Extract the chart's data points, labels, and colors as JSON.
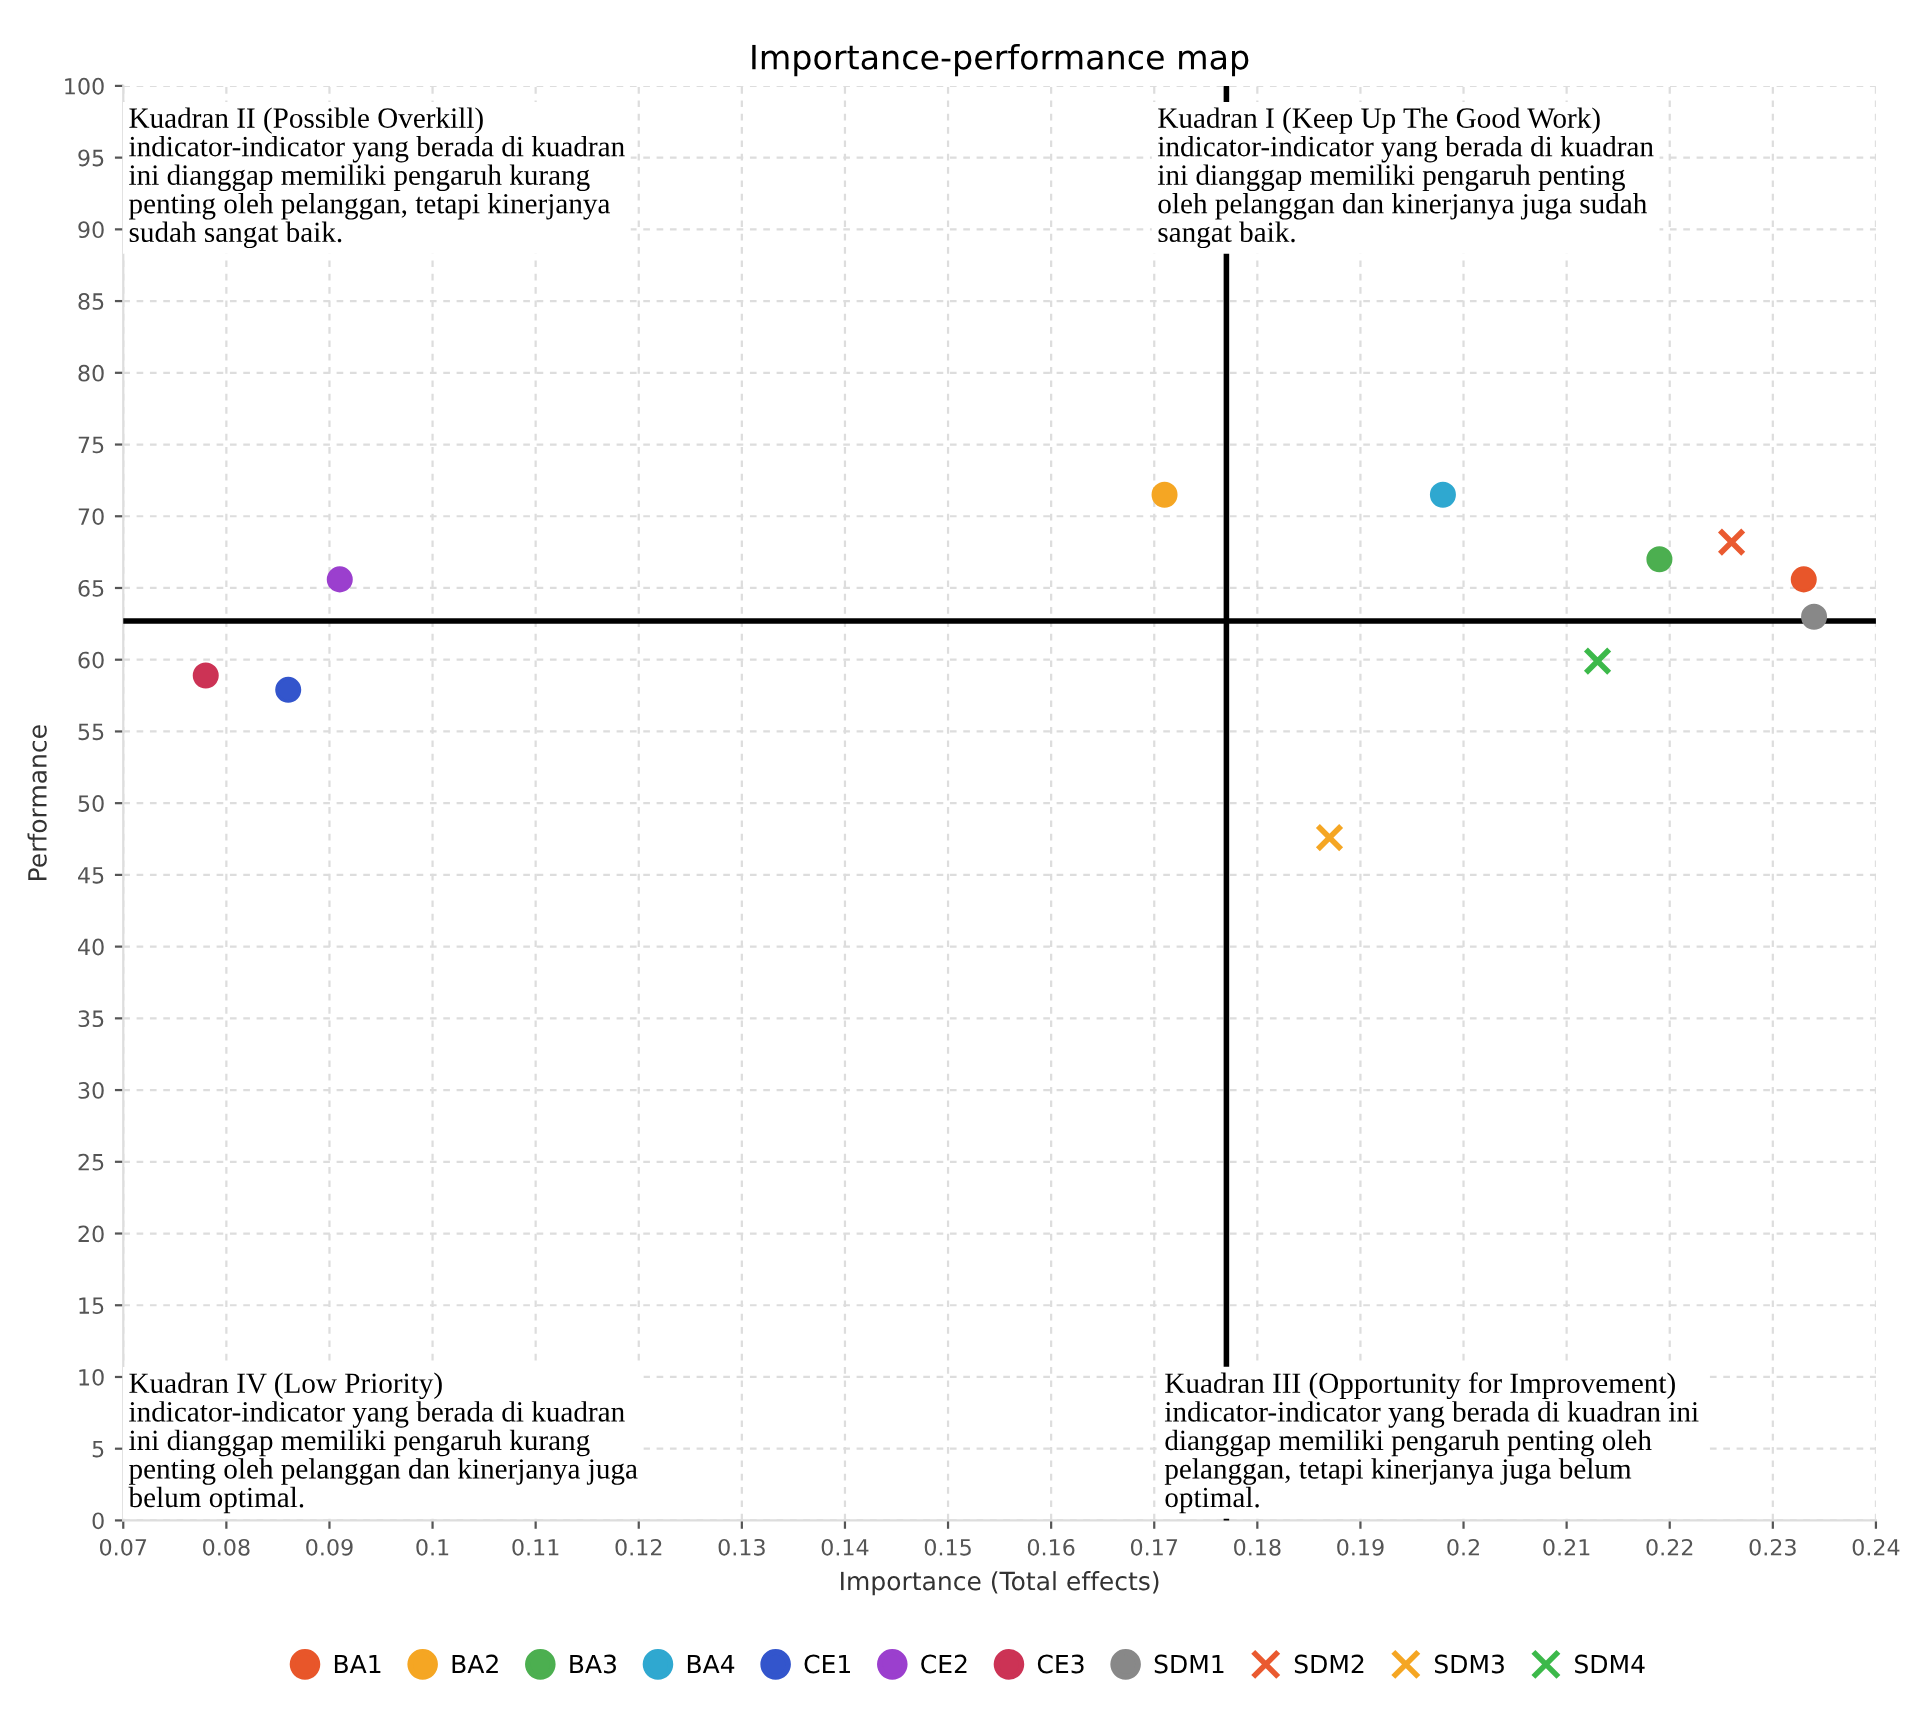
{
  "chart_data": {
    "type": "scatter",
    "title": "Importance-performance map",
    "xlabel": "Importance (Total effects)",
    "ylabel": "Performance",
    "xlim": [
      0.07,
      0.24
    ],
    "xticks": [
      0.07,
      0.08,
      0.09,
      0.1,
      0.11,
      0.12,
      0.13,
      0.14,
      0.15,
      0.16,
      0.17,
      0.18,
      0.19,
      0.2,
      0.21,
      0.22,
      0.23,
      0.24
    ],
    "ylim": [
      0,
      100
    ],
    "yticks": [
      0,
      5,
      10,
      15,
      20,
      25,
      30,
      35,
      40,
      45,
      50,
      55,
      60,
      65,
      70,
      75,
      80,
      85,
      90,
      95,
      100
    ],
    "grid": true,
    "legend": "bottom",
    "series": [
      {
        "name": "BA1",
        "color": "#e8562a",
        "marker": "circle",
        "x": [
          0.233
        ],
        "values": [
          65.6
        ]
      },
      {
        "name": "BA2",
        "color": "#f5a623",
        "marker": "circle",
        "x": [
          0.171
        ],
        "values": [
          71.5
        ]
      },
      {
        "name": "BA3",
        "color": "#4caf50",
        "marker": "circle",
        "x": [
          0.219
        ],
        "values": [
          67.0
        ]
      },
      {
        "name": "BA4",
        "color": "#2fa8d0",
        "marker": "circle",
        "x": [
          0.198
        ],
        "values": [
          71.5
        ]
      },
      {
        "name": "CE1",
        "color": "#3355cc",
        "marker": "circle",
        "x": [
          0.086
        ],
        "values": [
          57.9
        ]
      },
      {
        "name": "CE2",
        "color": "#9b3fce",
        "marker": "circle",
        "x": [
          0.091
        ],
        "values": [
          65.6
        ]
      },
      {
        "name": "CE3",
        "color": "#cc3355",
        "marker": "circle",
        "x": [
          0.078
        ],
        "values": [
          58.9
        ]
      },
      {
        "name": "SDM1",
        "color": "#888888",
        "marker": "circle",
        "x": [
          0.234
        ],
        "values": [
          63.0
        ]
      },
      {
        "name": "SDM2",
        "color": "#ea5a30",
        "marker": "cross",
        "x": [
          0.226
        ],
        "values": [
          68.2
        ]
      },
      {
        "name": "SDM3",
        "color": "#f5a623",
        "marker": "cross",
        "x": [
          0.187
        ],
        "values": [
          47.6
        ]
      },
      {
        "name": "SDM4",
        "color": "#3cb94a",
        "marker": "cross",
        "x": [
          0.213
        ],
        "values": [
          59.9
        ]
      }
    ],
    "ref_lines": [
      {
        "axis": "x",
        "value": 0.177,
        "color": "#000000"
      },
      {
        "axis": "y",
        "value": 62.7,
        "color": "#000000"
      }
    ],
    "annotations": [
      "Kuadran II (Possible Overkill)\nindicator-indicator yang berada di kuadran\nini dianggap memiliki pengaruh kurang\npenting oleh pelanggan, tetapi kinerjanya\nsudah sangat baik.",
      "Kuadran I (Keep Up The Good Work)\nindicator-indicator yang berada di kuadran\nini dianggap memiliki pengaruh penting\noleh pelanggan dan kinerjanya juga sudah\nsangat baik.",
      "Kuadran IV (Low Priority)\nindicator-indicator yang berada di kuadran\nini dianggap memiliki pengaruh kurang\npenting oleh pelanggan dan kinerjanya juga\nbelum optimal.",
      "Kuadran III (Opportunity for Improvement)\nindicator-indicator yang berada di kuadran ini\ndianggap memiliki pengaruh penting oleh\npelanggan, tetapi kinerjanya juga belum\noptimal."
    ]
  }
}
